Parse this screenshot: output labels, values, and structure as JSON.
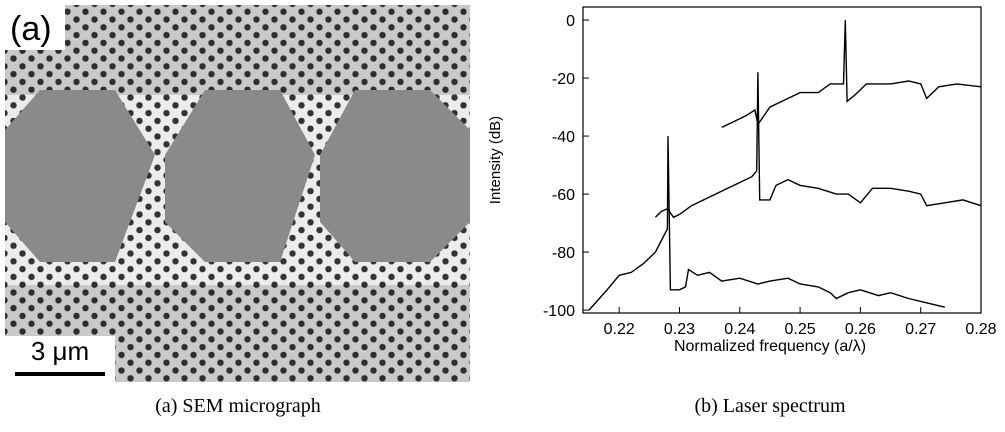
{
  "figure": {
    "panel_label": "(a)",
    "scale_bar": "3 μm",
    "captions": [
      "(a) SEM micrograph",
      "(b) Laser spectrum"
    ]
  },
  "chart_data": {
    "type": "line",
    "x_label": "Normalized frequency (a/λ)",
    "y_label": "Intensity (dB)",
    "xlim": [
      0.214,
      0.28
    ],
    "ylim": [
      -101,
      4.5
    ],
    "xticks": [
      0.22,
      0.23,
      0.24,
      0.25,
      0.26,
      0.27,
      0.28
    ],
    "yticks": [
      -100,
      -80,
      -60,
      -40,
      -20,
      0
    ],
    "series": [
      {
        "color": "#000000",
        "x": [
          0.215,
          0.218,
          0.22,
          0.222,
          0.224,
          0.226,
          0.227,
          0.2275,
          0.228,
          0.2281,
          0.2285,
          0.23,
          0.231,
          0.2315,
          0.233,
          0.235,
          0.237,
          0.24,
          0.243,
          0.245,
          0.248,
          0.25,
          0.253,
          0.255,
          0.256,
          0.258,
          0.26,
          0.263,
          0.265,
          0.268,
          0.27,
          0.272,
          0.274
        ],
        "values": [
          -100,
          -93,
          -88,
          -87,
          -84,
          -80,
          -76,
          -74,
          -72,
          -40,
          -93,
          -93,
          -92,
          -86,
          -88,
          -87,
          -90,
          -89,
          -91,
          -90,
          -89,
          -91,
          -92,
          -94,
          -96,
          -94,
          -93,
          -95,
          -94,
          -96,
          -97,
          -98,
          -99
        ]
      },
      {
        "color": "#000000",
        "x": [
          0.226,
          0.227,
          0.228,
          0.229,
          0.23,
          0.232,
          0.235,
          0.238,
          0.24,
          0.242,
          0.2428,
          0.243,
          0.2433,
          0.245,
          0.246,
          0.248,
          0.25,
          0.253,
          0.256,
          0.258,
          0.26,
          0.262,
          0.265,
          0.268,
          0.27,
          0.271,
          0.274,
          0.277,
          0.28
        ],
        "values": [
          -68,
          -66,
          -65,
          -68,
          -67,
          -64,
          -61,
          -58,
          -56,
          -54,
          -52,
          -18,
          -62,
          -62,
          -57,
          -55,
          -57,
          -58,
          -60,
          -60,
          -63,
          -58,
          -58,
          -59,
          -60,
          -64,
          -63,
          -62,
          -64
        ]
      },
      {
        "color": "#000000",
        "x": [
          0.237,
          0.239,
          0.241,
          0.2425,
          0.243,
          0.245,
          0.248,
          0.25,
          0.253,
          0.255,
          0.2572,
          0.2575,
          0.2578,
          0.259,
          0.261,
          0.265,
          0.268,
          0.27,
          0.271,
          0.273,
          0.276,
          0.28
        ],
        "values": [
          -37,
          -35,
          -33,
          -31,
          -36,
          -30,
          -27,
          -25,
          -25,
          -22,
          -22,
          0,
          -28,
          -26,
          -22,
          -22,
          -21,
          -22,
          -27,
          -23,
          -22,
          -23
        ]
      }
    ]
  }
}
